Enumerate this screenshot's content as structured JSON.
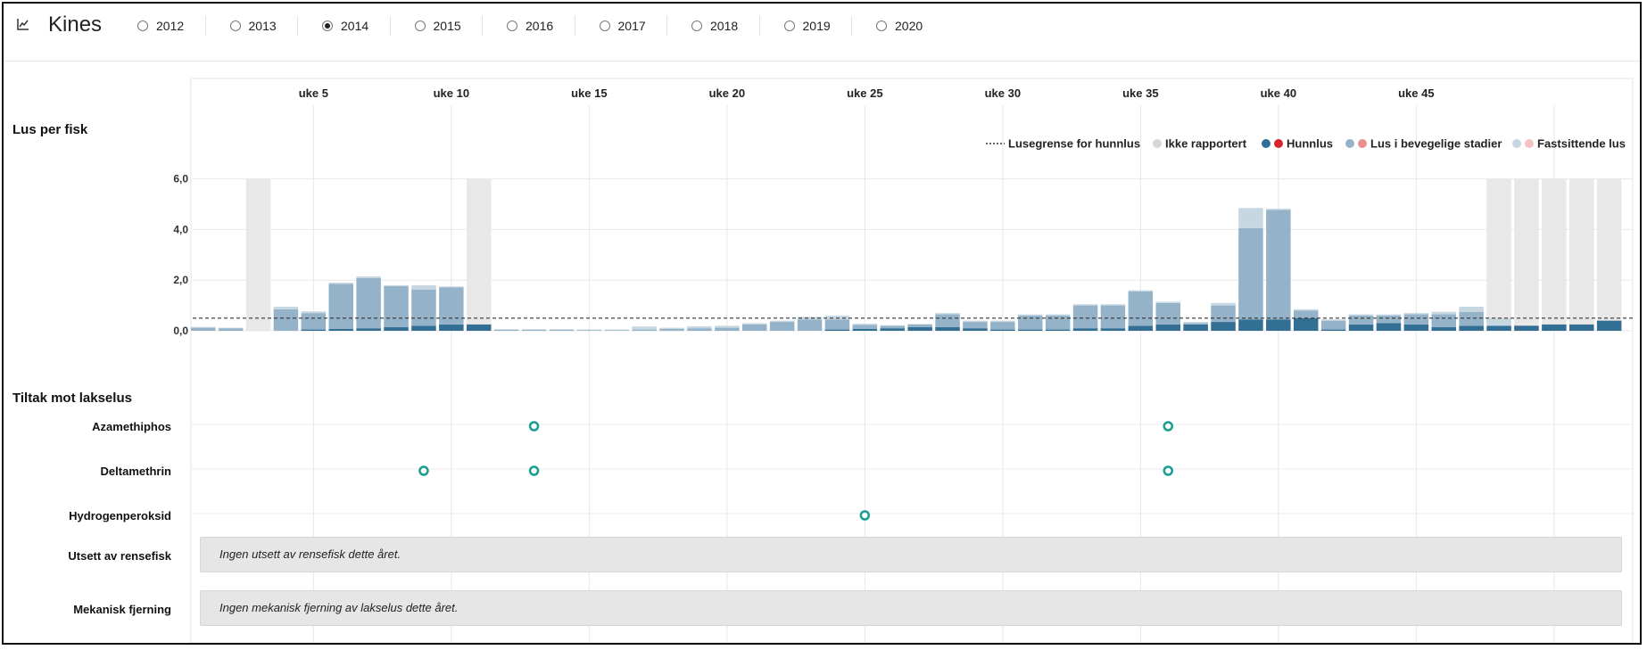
{
  "header": {
    "title": "Kines",
    "chart_icon": "line-chart-icon",
    "years": [
      {
        "label": "2012",
        "selected": false
      },
      {
        "label": "2013",
        "selected": false
      },
      {
        "label": "2014",
        "selected": true
      },
      {
        "label": "2015",
        "selected": false
      },
      {
        "label": "2016",
        "selected": false
      },
      {
        "label": "2017",
        "selected": false
      },
      {
        "label": "2018",
        "selected": false
      },
      {
        "label": "2019",
        "selected": false
      },
      {
        "label": "2020",
        "selected": false
      }
    ]
  },
  "sections": {
    "lice_title": "Lus per fisk",
    "treatments_title": "Tiltak mot lakselus"
  },
  "legend": {
    "limit": "Lusegrense for hunnlus",
    "not_reported": "Ikke rapportert",
    "female": "Hunnlus",
    "mobile": "Lus i bevegelige stadier",
    "attached": "Fastsittende lus"
  },
  "treatments": {
    "rows": [
      {
        "label": "Azamethiphos",
        "weeks": [
          13,
          36
        ]
      },
      {
        "label": "Deltamethrin",
        "weeks": [
          9,
          13,
          36
        ]
      },
      {
        "label": "Hydrogenperoksid",
        "weeks": [
          25
        ]
      }
    ],
    "marker_color": "#1a9e8f"
  },
  "info_rows": [
    {
      "label": "Utsett av rensefisk",
      "text": "Ingen utsett av rensefisk dette året."
    },
    {
      "label": "Mekanisk fjerning",
      "text": "Ingen mekanisk fjerning av lakselus dette året."
    }
  ],
  "colors": {
    "female": "#336e95",
    "mobile": "#94b3c8",
    "attached": "#c7d7e2",
    "not_reported": "#e8e8e8",
    "legend_female_alt": "#d7262b",
    "legend_mobile_alt": "#e89090",
    "legend_attached_alt": "#f3c3c3"
  },
  "chart_data": {
    "type": "bar",
    "title": "Lus per fisk",
    "y_ticks": [
      "0,0",
      "2,0",
      "4,0",
      "6,0"
    ],
    "ylim": [
      0,
      6
    ],
    "limit_line": 0.5,
    "x_tick_labels": [
      {
        "week": 5,
        "label": "uke 5"
      },
      {
        "week": 10,
        "label": "uke 10"
      },
      {
        "week": 15,
        "label": "uke 15"
      },
      {
        "week": 20,
        "label": "uke 20"
      },
      {
        "week": 25,
        "label": "uke 25"
      },
      {
        "week": 30,
        "label": "uke 30"
      },
      {
        "week": 35,
        "label": "uke 35"
      },
      {
        "week": 40,
        "label": "uke 40"
      },
      {
        "week": 45,
        "label": "uke 45"
      }
    ],
    "weeks": [
      1,
      2,
      3,
      4,
      5,
      6,
      7,
      8,
      9,
      10,
      11,
      12,
      13,
      14,
      15,
      16,
      17,
      18,
      19,
      20,
      21,
      22,
      23,
      24,
      25,
      26,
      27,
      28,
      29,
      30,
      31,
      32,
      33,
      34,
      35,
      36,
      37,
      38,
      39,
      40,
      41,
      42,
      43,
      44,
      45,
      46,
      47,
      48,
      49,
      50,
      51,
      52
    ],
    "not_reported_weeks": [
      3,
      11,
      48,
      49,
      50,
      51,
      52
    ],
    "series": [
      {
        "name": "Hunnlus",
        "key": "female",
        "values": [
          0,
          0,
          0,
          0,
          0.05,
          0.08,
          0.1,
          0.15,
          0.2,
          0.25,
          0.25,
          0,
          0,
          0,
          0,
          0,
          0,
          0,
          0,
          0,
          0,
          0,
          0,
          0.05,
          0.08,
          0.1,
          0.15,
          0.15,
          0.1,
          0.05,
          0.05,
          0.05,
          0.1,
          0.1,
          0.2,
          0.25,
          0.25,
          0.35,
          0.45,
          0.45,
          0.5,
          0.05,
          0.25,
          0.3,
          0.25,
          0.15,
          0.2,
          0.2,
          0.2,
          0.25,
          0.25,
          0.4
        ]
      },
      {
        "name": "Lus i bevegelige stadier",
        "key": "mobile",
        "values": [
          0.12,
          0.1,
          0,
          0.85,
          0.65,
          1.77,
          1.98,
          1.61,
          1.43,
          1.47,
          0,
          0.05,
          0.05,
          0.05,
          0.03,
          0.03,
          0.05,
          0.07,
          0.1,
          0.12,
          0.25,
          0.35,
          0.45,
          0.4,
          0.15,
          0.1,
          0.1,
          0.5,
          0.25,
          0.3,
          0.55,
          0.55,
          0.9,
          0.9,
          1.35,
          0.85,
          0.05,
          0.65,
          3.6,
          4.32,
          0.3,
          0.35,
          0.35,
          0.3,
          0.4,
          0.5,
          0.55,
          0,
          0,
          0,
          0,
          0
        ]
      },
      {
        "name": "Fastsittende lus",
        "key": "attached",
        "values": [
          0.03,
          0.02,
          0,
          0.1,
          0.07,
          0.05,
          0.07,
          0.04,
          0.17,
          0.03,
          0,
          0,
          0,
          0,
          0.02,
          0.02,
          0.12,
          0.05,
          0.08,
          0.08,
          0.05,
          0.05,
          0.1,
          0.15,
          0.05,
          0.02,
          0.02,
          0.05,
          0.05,
          0.05,
          0.05,
          0.05,
          0.05,
          0.05,
          0.05,
          0.05,
          0.05,
          0.1,
          0.8,
          0.05,
          0.05,
          0.05,
          0.05,
          0.05,
          0.05,
          0.1,
          0.2,
          0.3,
          0,
          0,
          0,
          0
        ]
      }
    ]
  }
}
